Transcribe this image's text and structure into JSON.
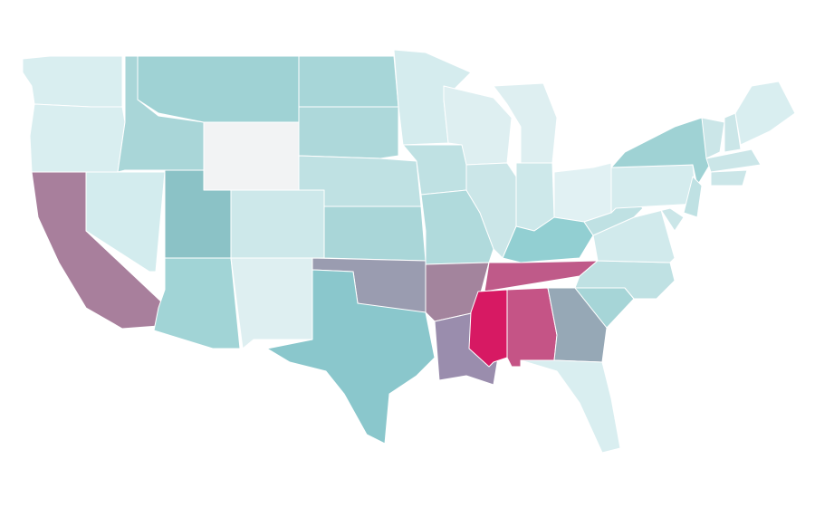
{
  "map": {
    "regions": [
      {
        "color": "#d9eef0"
      },
      {
        "color": "#d9eef0"
      },
      {
        "color": "#a87f9c"
      },
      {
        "color": "#d3ecee"
      },
      {
        "color": "#a9d6d8"
      },
      {
        "color": "#9fd2d4"
      },
      {
        "color": "#f2f3f4"
      },
      {
        "color": "#8bc2c6"
      },
      {
        "color": "#cde8ea"
      },
      {
        "color": "#a1d4d6"
      },
      {
        "color": "#deeff1"
      },
      {
        "color": "#a7d6d8"
      },
      {
        "color": "#add8da"
      },
      {
        "color": "#bfe1e3"
      },
      {
        "color": "#a9d6d8"
      },
      {
        "color": "#9a9cb0"
      },
      {
        "color": "#8ac7cc"
      },
      {
        "color": "#d5ecee"
      },
      {
        "color": "#bfe1e3"
      },
      {
        "color": "#b0dadc"
      },
      {
        "color": "#a3849d"
      },
      {
        "color": "#9a8dad"
      },
      {
        "color": "#deeff1"
      },
      {
        "color": "#cbe6e8"
      },
      {
        "color": "#deeff1"
      },
      {
        "color": "#cde8ea"
      },
      {
        "color": "#e1f1f3"
      },
      {
        "color": "#92cfd2"
      },
      {
        "color": "#bf5a89"
      },
      {
        "color": "#d71963"
      },
      {
        "color": "#c55486"
      },
      {
        "color": "#96a8b6"
      },
      {
        "color": "#d9eef0"
      },
      {
        "color": "#a6d5d7"
      },
      {
        "color": "#bfe1e3"
      },
      {
        "color": "#d1eaec"
      },
      {
        "color": "#bfe1e3"
      },
      {
        "color": "#d5ecee"
      },
      {
        "color": "#9fd2d4"
      },
      {
        "color": "#bfe1e3"
      },
      {
        "color": "#cbe6e8"
      },
      {
        "color": "#cbe6e8"
      },
      {
        "color": "#cbe6e8"
      },
      {
        "color": "#d9eef0"
      },
      {
        "color": "#cbe6e8"
      },
      {
        "color": "#cbe6e8"
      }
    ]
  }
}
